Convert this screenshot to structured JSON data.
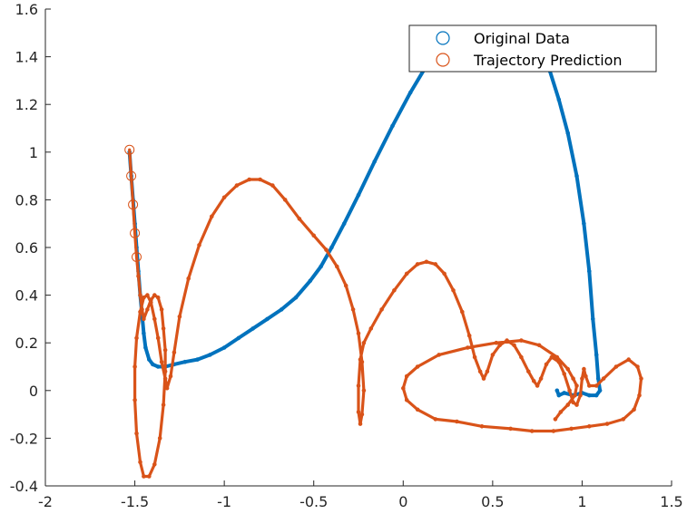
{
  "chart_data": {
    "type": "scatter",
    "title": "",
    "xlabel": "",
    "ylabel": "",
    "xlim": [
      -2,
      1.5
    ],
    "ylim": [
      -0.4,
      1.6
    ],
    "xticks": [
      "-2",
      "-1.5",
      "-1",
      "-0.5",
      "0",
      "0.5",
      "1",
      "1.5"
    ],
    "yticks": [
      "-0.4",
      "-0.2",
      "0",
      "0.2",
      "0.4",
      "0.6",
      "0.8",
      "1",
      "1.2",
      "1.4",
      "1.6"
    ],
    "grid": false,
    "legend_position": "top-right",
    "colors": {
      "original": "#0072BD",
      "prediction": "#D95319"
    },
    "series": [
      {
        "name": "Original Data",
        "marker": "circle",
        "segments": [
          [
            [
              -1.53,
              1.0
            ],
            [
              -1.52,
              0.9
            ],
            [
              -1.51,
              0.8
            ],
            [
              -1.5,
              0.7
            ],
            [
              -1.49,
              0.6
            ],
            [
              -1.48,
              0.5
            ],
            [
              -1.47,
              0.4
            ],
            [
              -1.46,
              0.32
            ],
            [
              -1.45,
              0.24
            ],
            [
              -1.44,
              0.18
            ],
            [
              -1.42,
              0.13
            ],
            [
              -1.4,
              0.11
            ],
            [
              -1.37,
              0.1
            ],
            [
              -1.33,
              0.1
            ],
            [
              -1.28,
              0.11
            ],
            [
              -1.22,
              0.12
            ],
            [
              -1.15,
              0.13
            ],
            [
              -1.08,
              0.15
            ],
            [
              -1.0,
              0.18
            ],
            [
              -0.92,
              0.22
            ],
            [
              -0.84,
              0.26
            ],
            [
              -0.76,
              0.3
            ],
            [
              -0.68,
              0.34
            ],
            [
              -0.6,
              0.39
            ],
            [
              -0.52,
              0.46
            ],
            [
              -0.46,
              0.52
            ],
            [
              -0.4,
              0.6
            ],
            [
              -0.33,
              0.7
            ],
            [
              -0.25,
              0.82
            ],
            [
              -0.16,
              0.96
            ],
            [
              -0.06,
              1.11
            ],
            [
              0.04,
              1.25
            ],
            [
              0.12,
              1.35
            ],
            [
              0.19,
              1.44
            ],
            [
              0.22,
              1.49
            ]
          ],
          [
            [
              0.72,
              1.49
            ],
            [
              0.77,
              1.42
            ],
            [
              0.82,
              1.34
            ],
            [
              0.87,
              1.22
            ],
            [
              0.92,
              1.08
            ],
            [
              0.97,
              0.9
            ],
            [
              1.01,
              0.7
            ],
            [
              1.04,
              0.5
            ],
            [
              1.06,
              0.3
            ],
            [
              1.08,
              0.15
            ],
            [
              1.09,
              0.05
            ],
            [
              1.1,
              0.0
            ],
            [
              1.08,
              -0.02
            ],
            [
              1.04,
              -0.02
            ],
            [
              1.0,
              -0.01
            ],
            [
              0.95,
              -0.02
            ],
            [
              0.9,
              -0.01
            ],
            [
              0.87,
              -0.02
            ],
            [
              0.86,
              0.0
            ]
          ]
        ]
      },
      {
        "name": "Trajectory Prediction",
        "marker": "circle",
        "segments": [
          [
            [
              -1.53,
              1.01
            ],
            [
              -1.52,
              0.9
            ],
            [
              -1.51,
              0.78
            ],
            [
              -1.5,
              0.66
            ],
            [
              -1.49,
              0.56
            ],
            [
              -1.48,
              0.48
            ],
            [
              -1.47,
              0.4
            ],
            [
              -1.46,
              0.34
            ],
            [
              -1.45,
              0.3
            ],
            [
              -1.43,
              0.34
            ],
            [
              -1.41,
              0.38
            ],
            [
              -1.39,
              0.4
            ],
            [
              -1.37,
              0.39
            ],
            [
              -1.35,
              0.34
            ],
            [
              -1.34,
              0.26
            ],
            [
              -1.33,
              0.17
            ],
            [
              -1.33,
              0.08
            ],
            [
              -1.34,
              -0.06
            ],
            [
              -1.36,
              -0.2
            ],
            [
              -1.39,
              -0.31
            ],
            [
              -1.42,
              -0.36
            ],
            [
              -1.45,
              -0.36
            ],
            [
              -1.47,
              -0.3
            ],
            [
              -1.49,
              -0.18
            ],
            [
              -1.5,
              -0.04
            ],
            [
              -1.5,
              0.1
            ],
            [
              -1.49,
              0.22
            ],
            [
              -1.47,
              0.33
            ],
            [
              -1.45,
              0.39
            ],
            [
              -1.43,
              0.4
            ],
            [
              -1.41,
              0.37
            ],
            [
              -1.39,
              0.3
            ],
            [
              -1.37,
              0.22
            ],
            [
              -1.35,
              0.12
            ],
            [
              -1.33,
              0.05
            ],
            [
              -1.32,
              0.01
            ],
            [
              -1.3,
              0.06
            ],
            [
              -1.28,
              0.16
            ],
            [
              -1.25,
              0.31
            ],
            [
              -1.2,
              0.47
            ],
            [
              -1.14,
              0.61
            ],
            [
              -1.07,
              0.73
            ],
            [
              -1.0,
              0.81
            ],
            [
              -0.93,
              0.86
            ],
            [
              -0.86,
              0.885
            ],
            [
              -0.8,
              0.885
            ],
            [
              -0.73,
              0.86
            ],
            [
              -0.66,
              0.8
            ],
            [
              -0.58,
              0.72
            ],
            [
              -0.5,
              0.65
            ],
            [
              -0.43,
              0.59
            ],
            [
              -0.37,
              0.52
            ],
            [
              -0.32,
              0.44
            ],
            [
              -0.28,
              0.34
            ],
            [
              -0.25,
              0.24
            ],
            [
              -0.23,
              0.12
            ],
            [
              -0.22,
              0.0
            ],
            [
              -0.23,
              -0.1
            ],
            [
              -0.24,
              -0.14
            ],
            [
              -0.25,
              -0.09
            ],
            [
              -0.25,
              0.02
            ],
            [
              -0.24,
              0.13
            ],
            [
              -0.22,
              0.2
            ],
            [
              -0.18,
              0.26
            ],
            [
              -0.12,
              0.34
            ],
            [
              -0.05,
              0.42
            ],
            [
              0.02,
              0.49
            ],
            [
              0.08,
              0.53
            ],
            [
              0.13,
              0.54
            ],
            [
              0.18,
              0.53
            ],
            [
              0.23,
              0.49
            ],
            [
              0.28,
              0.42
            ],
            [
              0.33,
              0.33
            ],
            [
              0.37,
              0.23
            ],
            [
              0.4,
              0.14
            ],
            [
              0.43,
              0.08
            ],
            [
              0.45,
              0.05
            ],
            [
              0.47,
              0.08
            ],
            [
              0.5,
              0.15
            ],
            [
              0.54,
              0.19
            ],
            [
              0.58,
              0.21
            ],
            [
              0.62,
              0.19
            ],
            [
              0.66,
              0.14
            ],
            [
              0.7,
              0.08
            ],
            [
              0.73,
              0.04
            ],
            [
              0.75,
              0.02
            ],
            [
              0.77,
              0.05
            ],
            [
              0.8,
              0.11
            ],
            [
              0.83,
              0.14
            ],
            [
              0.87,
              0.12
            ],
            [
              0.9,
              0.07
            ],
            [
              0.93,
              0.0
            ],
            [
              0.95,
              -0.05
            ],
            [
              0.97,
              -0.06
            ],
            [
              0.99,
              -0.02
            ],
            [
              1.0,
              0.05
            ],
            [
              1.01,
              0.09
            ],
            [
              1.02,
              0.06
            ],
            [
              1.04,
              0.02
            ],
            [
              1.08,
              0.02
            ],
            [
              1.12,
              0.05
            ],
            [
              1.19,
              0.1
            ],
            [
              1.26,
              0.13
            ],
            [
              1.31,
              0.1
            ],
            [
              1.33,
              0.05
            ],
            [
              1.32,
              -0.02
            ],
            [
              1.29,
              -0.08
            ],
            [
              1.23,
              -0.12
            ],
            [
              1.14,
              -0.14
            ],
            [
              1.04,
              -0.15
            ],
            [
              0.94,
              -0.16
            ],
            [
              0.84,
              -0.17
            ],
            [
              0.72,
              -0.17
            ],
            [
              0.6,
              -0.16
            ],
            [
              0.44,
              -0.15
            ],
            [
              0.3,
              -0.13
            ],
            [
              0.18,
              -0.12
            ],
            [
              0.08,
              -0.08
            ],
            [
              0.02,
              -0.04
            ],
            [
              0.0,
              0.01
            ],
            [
              0.02,
              0.06
            ],
            [
              0.08,
              0.1
            ],
            [
              0.2,
              0.15
            ],
            [
              0.36,
              0.18
            ],
            [
              0.52,
              0.2
            ],
            [
              0.66,
              0.21
            ],
            [
              0.76,
              0.19
            ],
            [
              0.86,
              0.14
            ],
            [
              0.92,
              0.09
            ],
            [
              0.95,
              0.05
            ],
            [
              0.97,
              0.02
            ],
            [
              0.96,
              -0.02
            ],
            [
              0.92,
              -0.06
            ],
            [
              0.88,
              -0.09
            ],
            [
              0.85,
              -0.12
            ]
          ]
        ]
      }
    ]
  }
}
